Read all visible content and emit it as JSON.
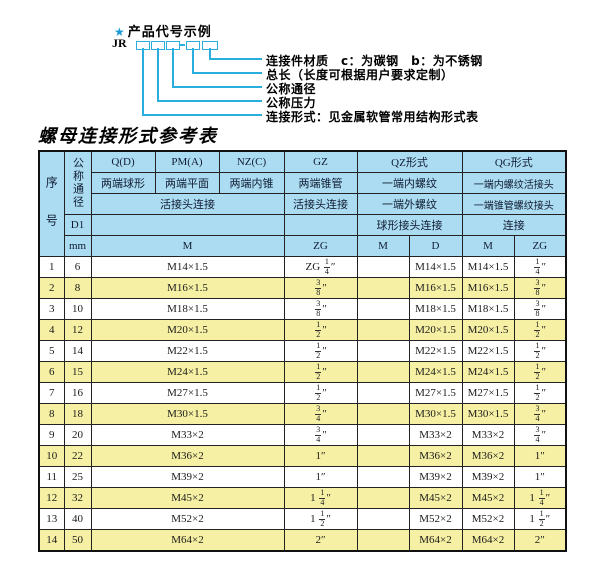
{
  "diagram": {
    "star": "★",
    "title": "产品代号示例",
    "code_prefix": "JR",
    "accent_color": "#29aede",
    "labels": [
      "连接件材质　c：为碳钢　b：为不锈钢",
      "总长（长度可根据用户要求定制）",
      "公称通径",
      "公称压力",
      "连接形式：见金属软管常用结构形式表"
    ]
  },
  "table": {
    "title": "螺母连接形式参考表",
    "colors": {
      "header_bg": "#abdcf2",
      "row_alt_bg": "#f6f0a4",
      "row_bg": "#ffffff",
      "border": "#1b1b1b"
    },
    "header": {
      "seq": "序号",
      "dn": "公称通径",
      "d1": "D1",
      "mm": "mm",
      "col_q": "Q(D)",
      "col_q_sub": "两端球形",
      "col_pm": "PM(A)",
      "col_pm_sub": "两端平面",
      "col_nz": "NZ(C)",
      "col_nz_sub": "两端内锥",
      "col_gz": "GZ",
      "col_gz_sub": "两端锥管",
      "union_conn": "活接头连接",
      "gz_conn": "活接头连接",
      "col_qz": "QZ形式",
      "col_qz_sub1": "一端内螺纹",
      "col_qz_sub2": "一端外螺纹",
      "col_qz_sub3": "球形接头连接",
      "col_qg": "QG形式",
      "col_qg_sub1": "一端内螺纹活接头",
      "col_qg_sub2": "一端锥管螺纹接头",
      "col_qg_sub3": "连接",
      "m_label": "M",
      "zg_label": "ZG",
      "qz_m": "M",
      "qz_d": "D",
      "qg_m": "M",
      "qg_zg": "ZG"
    },
    "rows": [
      {
        "no": "1",
        "dn": "6",
        "m": "M14×1.5",
        "gz": "ZG 1/4″",
        "qz_m": "",
        "qz_d": "M14×1.5",
        "qg_m": "M14×1.5",
        "qg_zg": "1/4″"
      },
      {
        "no": "2",
        "dn": "8",
        "m": "M16×1.5",
        "gz": "3/8″",
        "qz_m": "",
        "qz_d": "M16×1.5",
        "qg_m": "M16×1.5",
        "qg_zg": "3/8″"
      },
      {
        "no": "3",
        "dn": "10",
        "m": "M18×1.5",
        "gz": "3/8″",
        "qz_m": "",
        "qz_d": "M18×1.5",
        "qg_m": "M18×1.5",
        "qg_zg": "3/8″"
      },
      {
        "no": "4",
        "dn": "12",
        "m": "M20×1.5",
        "gz": "1/2″",
        "qz_m": "",
        "qz_d": "M20×1.5",
        "qg_m": "M20×1.5",
        "qg_zg": "1/2″"
      },
      {
        "no": "5",
        "dn": "14",
        "m": "M22×1.5",
        "gz": "1/2″",
        "qz_m": "",
        "qz_d": "M22×1.5",
        "qg_m": "M22×1.5",
        "qg_zg": "1/2″"
      },
      {
        "no": "6",
        "dn": "15",
        "m": "M24×1.5",
        "gz": "1/2″",
        "qz_m": "",
        "qz_d": "M24×1.5",
        "qg_m": "M24×1.5",
        "qg_zg": "1/2″"
      },
      {
        "no": "7",
        "dn": "16",
        "m": "M27×1.5",
        "gz": "1/2″",
        "qz_m": "",
        "qz_d": "M27×1.5",
        "qg_m": "M27×1.5",
        "qg_zg": "1/2″"
      },
      {
        "no": "8",
        "dn": "18",
        "m": "M30×1.5",
        "gz": "3/4″",
        "qz_m": "",
        "qz_d": "M30×1.5",
        "qg_m": "M30×1.5",
        "qg_zg": "3/4″"
      },
      {
        "no": "9",
        "dn": "20",
        "m": "M33×2",
        "gz": "3/4″",
        "qz_m": "",
        "qz_d": "M33×2",
        "qg_m": "M33×2",
        "qg_zg": "3/4″"
      },
      {
        "no": "10",
        "dn": "22",
        "m": "M36×2",
        "gz": "1″",
        "qz_m": "",
        "qz_d": "M36×2",
        "qg_m": "M36×2",
        "qg_zg": "1″"
      },
      {
        "no": "11",
        "dn": "25",
        "m": "M39×2",
        "gz": "1″",
        "qz_m": "",
        "qz_d": "M39×2",
        "qg_m": "M39×2",
        "qg_zg": "1″"
      },
      {
        "no": "12",
        "dn": "32",
        "m": "M45×2",
        "gz": "1 1/4″",
        "qz_m": "",
        "qz_d": "M45×2",
        "qg_m": "M45×2",
        "qg_zg": "1 1/4″"
      },
      {
        "no": "13",
        "dn": "40",
        "m": "M52×2",
        "gz": "1 1/2″",
        "qz_m": "",
        "qz_d": "M52×2",
        "qg_m": "M52×2",
        "qg_zg": "1 1/2″"
      },
      {
        "no": "14",
        "dn": "50",
        "m": "M64×2",
        "gz": "2″",
        "qz_m": "",
        "qz_d": "M64×2",
        "qg_m": "M64×2",
        "qg_zg": "2″"
      }
    ]
  }
}
